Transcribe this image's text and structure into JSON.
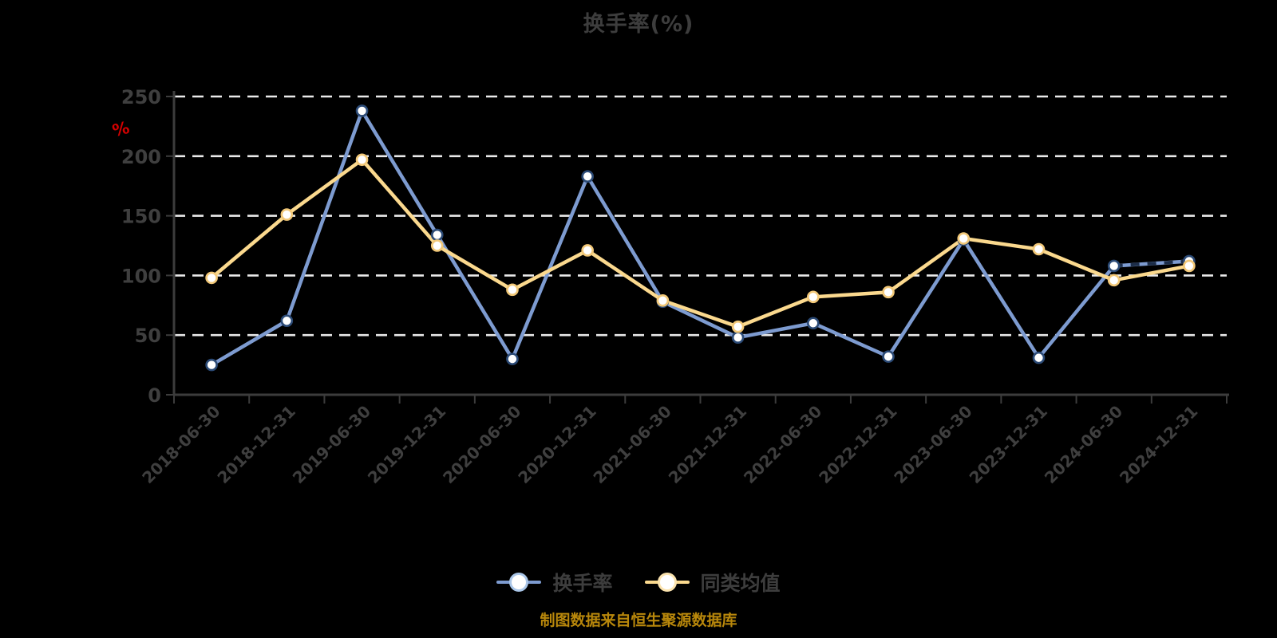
{
  "chart_data": {
    "type": "line",
    "title": "换手率(%)",
    "unit_label": "%",
    "footer": "制图数据来自恒生聚源数据库",
    "categories": [
      "2018-06-30",
      "2018-12-31",
      "2019-06-30",
      "2019-12-31",
      "2020-06-30",
      "2020-12-31",
      "2021-06-30",
      "2021-12-31",
      "2022-06-30",
      "2022-12-31",
      "2023-06-30",
      "2023-12-31",
      "2024-06-30",
      "2024-12-31"
    ],
    "series": [
      {
        "name": "换手率",
        "color": "#7d9bd0",
        "marker_ring": "#2b4a76",
        "legend_ring": "#aac6e8",
        "values": [
          25,
          62,
          238,
          134,
          30,
          183,
          78,
          48,
          60,
          32,
          130,
          31,
          108,
          112
        ]
      },
      {
        "name": "同类均值",
        "color": "#fbd98e",
        "marker_ring": "#f2c878",
        "legend_ring": "#fbe3ae",
        "values": [
          98,
          151,
          197,
          125,
          88,
          121,
          79,
          57,
          82,
          86,
          131,
          122,
          96,
          108
        ]
      }
    ],
    "ylim": [
      0,
      250
    ],
    "y_ticks": [
      0,
      50,
      100,
      150,
      200,
      250
    ],
    "xlabel": "",
    "ylabel": "%",
    "grid": "horizontal-dashed-white",
    "legend_position": "bottom",
    "x_label_rotation": -45,
    "colors": {
      "background": "#000000",
      "text": "#3d3d3d",
      "tick_label": "#3f3f3f",
      "axis": "#3c3c3c",
      "grid": "#e9e9e9",
      "unit_label": "#d40000",
      "footer": "#b8870b",
      "marker_fill": "#ffffff",
      "dash_overlay": "#1c2d49"
    }
  }
}
